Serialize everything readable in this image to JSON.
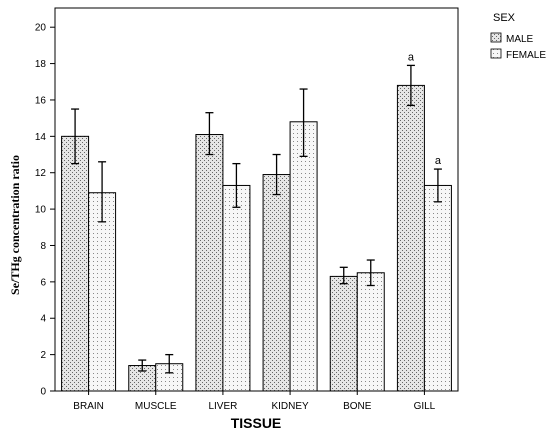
{
  "chart_data": {
    "type": "bar",
    "xlabel": "TISSUE",
    "ylabel": "Se/THg concentration ratio",
    "ylim": [
      0,
      20
    ],
    "yticks": [
      "0",
      "2",
      "4",
      "6",
      "8",
      "10",
      "12",
      "14",
      "16",
      "18",
      "20"
    ],
    "grid": false,
    "legend": {
      "title": "SEX",
      "position": "top-right, outside plot",
      "entries": [
        "MALE",
        "FEMALE"
      ]
    },
    "categories": [
      "BRAIN",
      "MUSCLE",
      "LIVER",
      "KIDNEY",
      "BONE",
      "GILL"
    ],
    "series": [
      {
        "name": "MALE",
        "pattern": "dense-dots",
        "values": [
          14.0,
          1.4,
          14.1,
          11.9,
          6.3,
          16.8
        ],
        "err_low": [
          12.5,
          1.1,
          13.0,
          10.8,
          5.9,
          15.7
        ],
        "err_high": [
          15.5,
          1.7,
          15.3,
          13.0,
          6.8,
          17.9
        ]
      },
      {
        "name": "FEMALE",
        "pattern": "sparse-dots",
        "values": [
          10.9,
          1.5,
          11.3,
          14.8,
          6.5,
          11.3
        ],
        "err_low": [
          9.3,
          1.0,
          10.1,
          12.9,
          5.8,
          10.4
        ],
        "err_high": [
          12.6,
          2.0,
          12.5,
          16.6,
          7.2,
          12.2
        ]
      }
    ],
    "annotations": [
      {
        "text": "a",
        "category": "GILL",
        "series": "MALE"
      },
      {
        "text": "a",
        "category": "GILL",
        "series": "FEMALE"
      }
    ]
  }
}
